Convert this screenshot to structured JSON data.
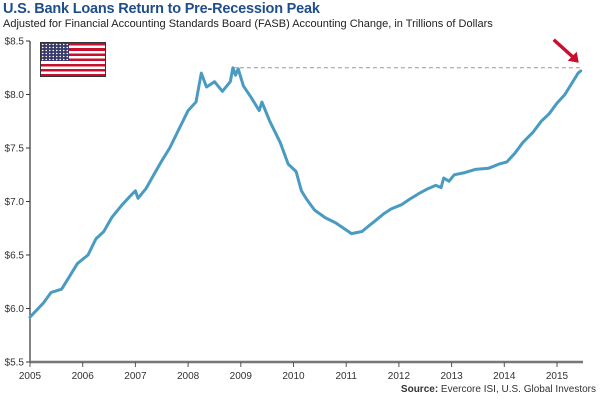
{
  "chart_data": {
    "type": "line",
    "title": "U.S. Bank Loans Return to Pre-Recession Peak",
    "subtitle": "Adjusted for Financial Accounting Standards Board (FASB) Accounting Change, in Trillions of Dollars",
    "source_label": "Source:",
    "source_text": " Evercore ISI, U.S. Global Investors",
    "xlabel": "",
    "ylabel": "",
    "xlim": [
      2005,
      2015.5
    ],
    "ylim": [
      5.5,
      8.5
    ],
    "x_ticks": [
      "2005",
      "2006",
      "2007",
      "2008",
      "2009",
      "2010",
      "2011",
      "2012",
      "2013",
      "2014",
      "2015"
    ],
    "y_ticks": [
      "$5.5",
      "$6.0",
      "$6.5",
      "$7.0",
      "$7.5",
      "$8.0",
      "$8.5"
    ],
    "y_tick_values": [
      5.5,
      6.0,
      6.5,
      7.0,
      7.5,
      8.0,
      8.5
    ],
    "grid": false,
    "legend": "none",
    "series": [
      {
        "name": "U.S. Bank Loans",
        "color": "#4a9bc1",
        "x": [
          2005.0,
          2005.25,
          2005.4,
          2005.6,
          2005.75,
          2005.9,
          2006.1,
          2006.25,
          2006.4,
          2006.55,
          2006.75,
          2006.9,
          2007.0,
          2007.05,
          2007.2,
          2007.35,
          2007.5,
          2007.65,
          2007.85,
          2008.0,
          2008.15,
          2008.25,
          2008.35,
          2008.5,
          2008.65,
          2008.8,
          2008.85,
          2008.9,
          2008.95,
          2009.05,
          2009.2,
          2009.35,
          2009.4,
          2009.55,
          2009.75,
          2009.9,
          2010.05,
          2010.15,
          2010.25,
          2010.4,
          2010.6,
          2010.8,
          2010.95,
          2011.1,
          2011.3,
          2011.45,
          2011.55,
          2011.7,
          2011.85,
          2012.05,
          2012.2,
          2012.4,
          2012.55,
          2012.7,
          2012.8,
          2012.85,
          2012.95,
          2013.05,
          2013.25,
          2013.45,
          2013.7,
          2013.9,
          2014.05,
          2014.2,
          2014.35,
          2014.55,
          2014.7,
          2014.85,
          2015.0,
          2015.15,
          2015.3,
          2015.4,
          2015.45
        ],
        "values": [
          5.92,
          6.05,
          6.15,
          6.18,
          6.3,
          6.42,
          6.5,
          6.65,
          6.72,
          6.85,
          6.97,
          7.05,
          7.1,
          7.03,
          7.12,
          7.25,
          7.38,
          7.5,
          7.7,
          7.85,
          7.93,
          8.2,
          8.07,
          8.12,
          8.03,
          8.12,
          8.25,
          8.18,
          8.24,
          8.08,
          7.97,
          7.85,
          7.93,
          7.75,
          7.55,
          7.35,
          7.28,
          7.1,
          7.02,
          6.92,
          6.85,
          6.8,
          6.75,
          6.7,
          6.72,
          6.78,
          6.82,
          6.88,
          6.93,
          6.97,
          7.02,
          7.08,
          7.12,
          7.15,
          7.13,
          7.22,
          7.19,
          7.25,
          7.27,
          7.3,
          7.31,
          7.35,
          7.37,
          7.45,
          7.55,
          7.65,
          7.75,
          7.82,
          7.92,
          8.0,
          8.12,
          8.2,
          8.22
        ]
      }
    ],
    "annotations": [
      {
        "type": "dashed-reference-line",
        "label": "Pre-recession peak",
        "value": 8.25,
        "x_from": 2008.85,
        "x_to": 2015.45,
        "color": "#999999"
      },
      {
        "type": "arrow",
        "label": "Current level",
        "points_to_x": 2015.45,
        "color": "#c8102e"
      },
      {
        "type": "image",
        "label": "U.S. flag"
      }
    ]
  }
}
